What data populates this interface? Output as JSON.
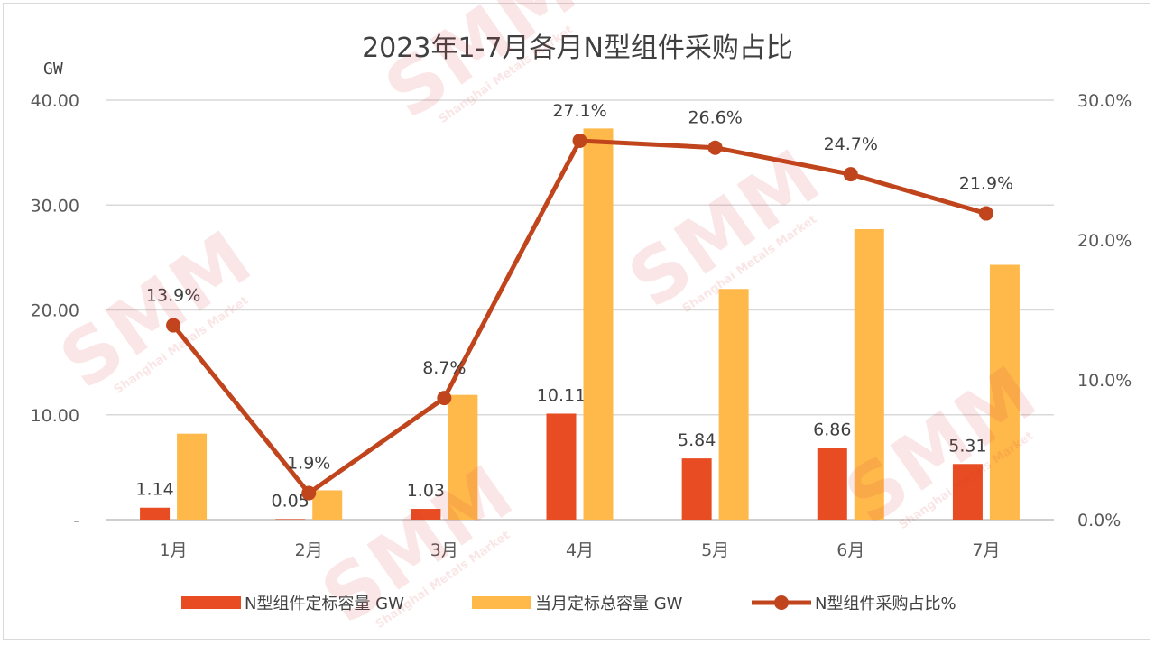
{
  "chart_data": {
    "type": "bar",
    "title": "2023年1-7月各月N型组件采购占比",
    "y_unit": "GW",
    "categories": [
      "1月",
      "2月",
      "3月",
      "4月",
      "5月",
      "6月",
      "7月"
    ],
    "series": [
      {
        "name": "N型组件定标容量 GW",
        "type": "bar",
        "axis": "left",
        "color": "#e84c22",
        "values": [
          1.14,
          0.05,
          1.03,
          10.11,
          5.84,
          6.86,
          5.31
        ],
        "labels": [
          "1.14",
          "0.05",
          "1.03",
          "10.11",
          "5.84",
          "6.86",
          "5.31"
        ]
      },
      {
        "name": "当月定标总容量 GW",
        "type": "bar",
        "axis": "left",
        "color": "#ffb94a",
        "values": [
          8.2,
          2.8,
          11.9,
          37.3,
          22.0,
          27.7,
          24.3
        ]
      },
      {
        "name": "N型组件采购占比%",
        "type": "line",
        "axis": "right",
        "color": "#c0441c",
        "values": [
          13.9,
          1.9,
          8.7,
          27.1,
          26.6,
          24.7,
          21.9
        ],
        "labels": [
          "13.9%",
          "1.9%",
          "8.7%",
          "27.1%",
          "26.6%",
          "24.7%",
          "21.9%"
        ]
      }
    ],
    "y_left": {
      "min": 0,
      "max": 40,
      "ticks": [
        "-",
        "10.00",
        "20.00",
        "30.00",
        "40.00"
      ]
    },
    "y_right": {
      "min": 0,
      "max": 30,
      "ticks": [
        "0.0%",
        "10.0%",
        "20.0%",
        "30.0%"
      ]
    },
    "grid": true,
    "legend_position": "bottom"
  },
  "watermark": {
    "brand": "SMM",
    "subtitle": "Shanghai Metals Market"
  }
}
